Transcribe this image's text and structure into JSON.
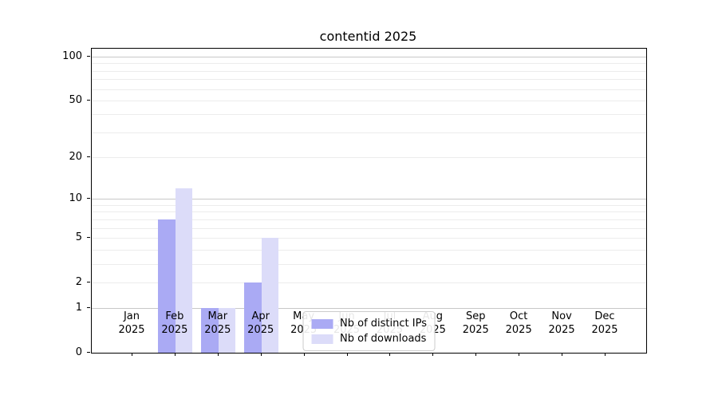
{
  "title": "contentid 2025",
  "chart_data": {
    "type": "bar",
    "title": "contentid 2025",
    "categories": [
      "Jan 2025",
      "Feb 2025",
      "Mar 2025",
      "Apr 2025",
      "May 2025",
      "Jun 2025",
      "Jul 2025",
      "Aug 2025",
      "Sep 2025",
      "Oct 2025",
      "Nov 2025",
      "Dec 2025"
    ],
    "series": [
      {
        "name": "Nb of distinct IPs",
        "color": "#aaaaf4",
        "values": [
          0,
          7,
          1,
          2,
          0,
          0,
          0,
          0,
          0,
          0,
          0,
          0
        ]
      },
      {
        "name": "Nb of downloads",
        "color": "#dcdcf9",
        "values": [
          0,
          12,
          1,
          5,
          0,
          0,
          0,
          0,
          0,
          0,
          0,
          0
        ]
      }
    ],
    "xlabel": "",
    "ylabel": "",
    "yscale": "log1p",
    "ylim": [
      0,
      100
    ],
    "y_ticks": [
      0,
      1,
      2,
      5,
      10,
      20,
      50,
      100
    ],
    "y_major_gridlines": [
      1,
      10,
      100
    ],
    "y_minor_gridlines": [
      2,
      3,
      4,
      5,
      6,
      7,
      8,
      9,
      20,
      30,
      40,
      50,
      60,
      70,
      80,
      90
    ],
    "grid": true,
    "legend_position": "lower center"
  },
  "colors": {
    "background": "#ffffff",
    "axis": "#000000",
    "grid_major": "#c8c8c8",
    "grid_minor": "#ececec",
    "legend_border": "#cccccc",
    "bar_ips": "#aaaaf4",
    "bar_downloads": "#dcdcf9"
  }
}
